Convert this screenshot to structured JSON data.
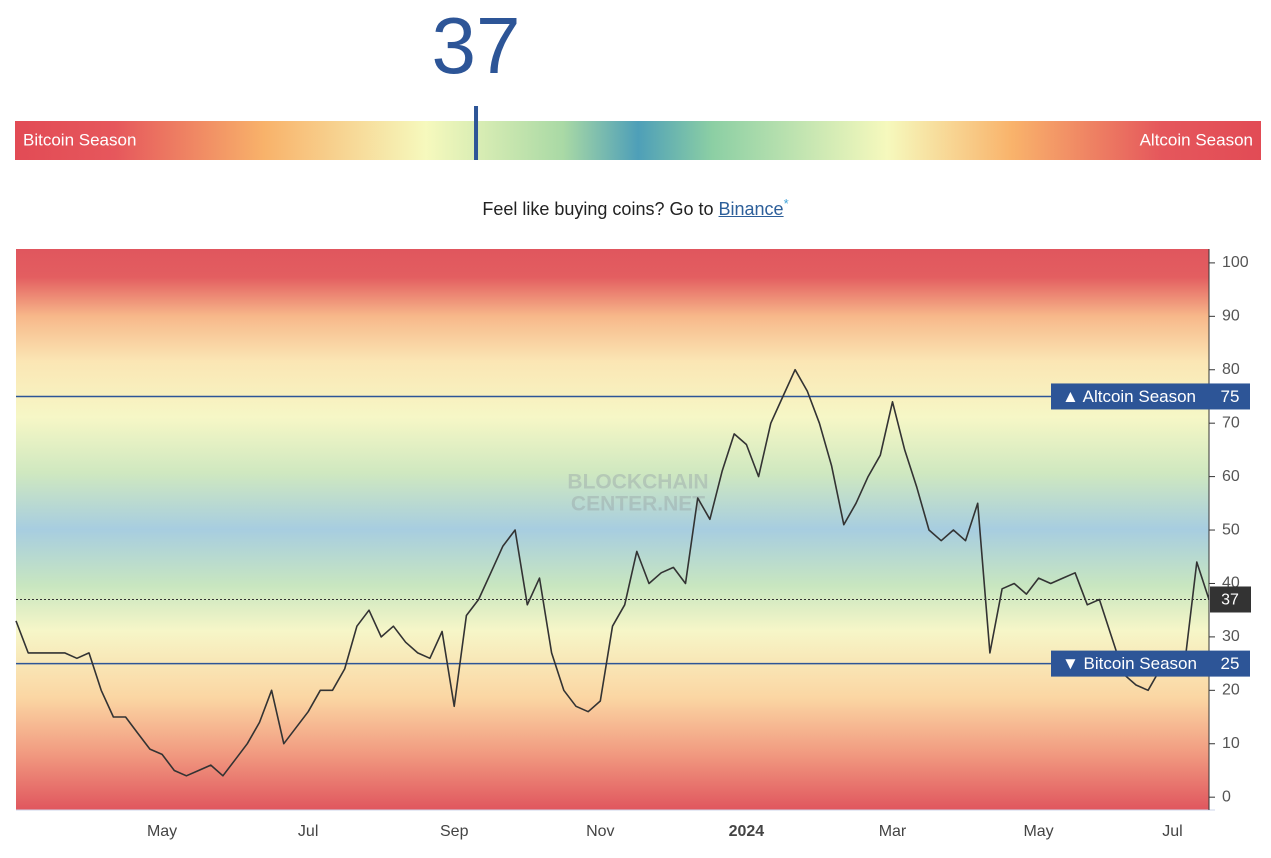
{
  "gauge": {
    "value": 37,
    "range": [
      0,
      100
    ],
    "left_label": "Bitcoin Season",
    "right_label": "Altcoin Season"
  },
  "promo": {
    "text": "Feel like buying coins? Go to",
    "link": "Binance",
    "asterisk": "*"
  },
  "chart_data": {
    "type": "line",
    "categories": [
      null,
      null,
      null,
      null,
      null,
      null,
      null,
      null,
      null,
      null,
      null,
      null,
      "May",
      null,
      null,
      null,
      null,
      null,
      null,
      null,
      null,
      null,
      null,
      null,
      "Jul",
      null,
      null,
      null,
      null,
      null,
      null,
      null,
      null,
      null,
      null,
      null,
      "Sep",
      null,
      null,
      null,
      null,
      null,
      null,
      null,
      null,
      null,
      null,
      null,
      "Nov",
      null,
      null,
      null,
      null,
      null,
      null,
      null,
      null,
      null,
      null,
      null,
      "2024",
      null,
      null,
      null,
      null,
      null,
      null,
      null,
      null,
      null,
      null,
      null,
      "Mar",
      null,
      null,
      null,
      null,
      null,
      null,
      null,
      null,
      null,
      null,
      null,
      "May",
      null,
      null,
      null,
      null,
      null,
      null,
      null,
      null,
      null,
      null,
      "Jul",
      null,
      null,
      null
    ],
    "values": [
      33,
      27,
      27,
      27,
      27,
      26,
      27,
      20,
      15,
      15,
      12,
      9,
      8,
      5,
      4,
      5,
      6,
      4,
      7,
      10,
      14,
      20,
      10,
      13,
      16,
      20,
      20,
      24,
      32,
      35,
      30,
      32,
      29,
      27,
      26,
      31,
      17,
      34,
      37,
      42,
      47,
      50,
      36,
      41,
      27,
      20,
      17,
      16,
      18,
      32,
      36,
      46,
      40,
      42,
      43,
      40,
      56,
      52,
      61,
      68,
      66,
      60,
      70,
      75,
      80,
      76,
      70,
      62,
      51,
      55,
      60,
      64,
      74,
      65,
      58,
      50,
      48,
      50,
      48,
      55,
      27,
      39,
      40,
      38,
      41,
      40,
      41,
      42,
      36,
      37,
      30,
      23,
      21,
      20,
      24,
      26,
      25,
      44,
      37
    ],
    "color": "#333333",
    "ylim": [
      -2.4,
      102.6
    ],
    "yticks": [
      0,
      10,
      20,
      30,
      40,
      50,
      60,
      70,
      80,
      90,
      100
    ],
    "reference_lines": [
      {
        "value": 75,
        "label": "▲ Altcoin Season"
      },
      {
        "value": 25,
        "label": "▼ Bitcoin Season"
      }
    ],
    "reference_color": "#2d5597",
    "watermark": [
      "BLOCKCHAIN",
      "CENTER.NET"
    ]
  }
}
